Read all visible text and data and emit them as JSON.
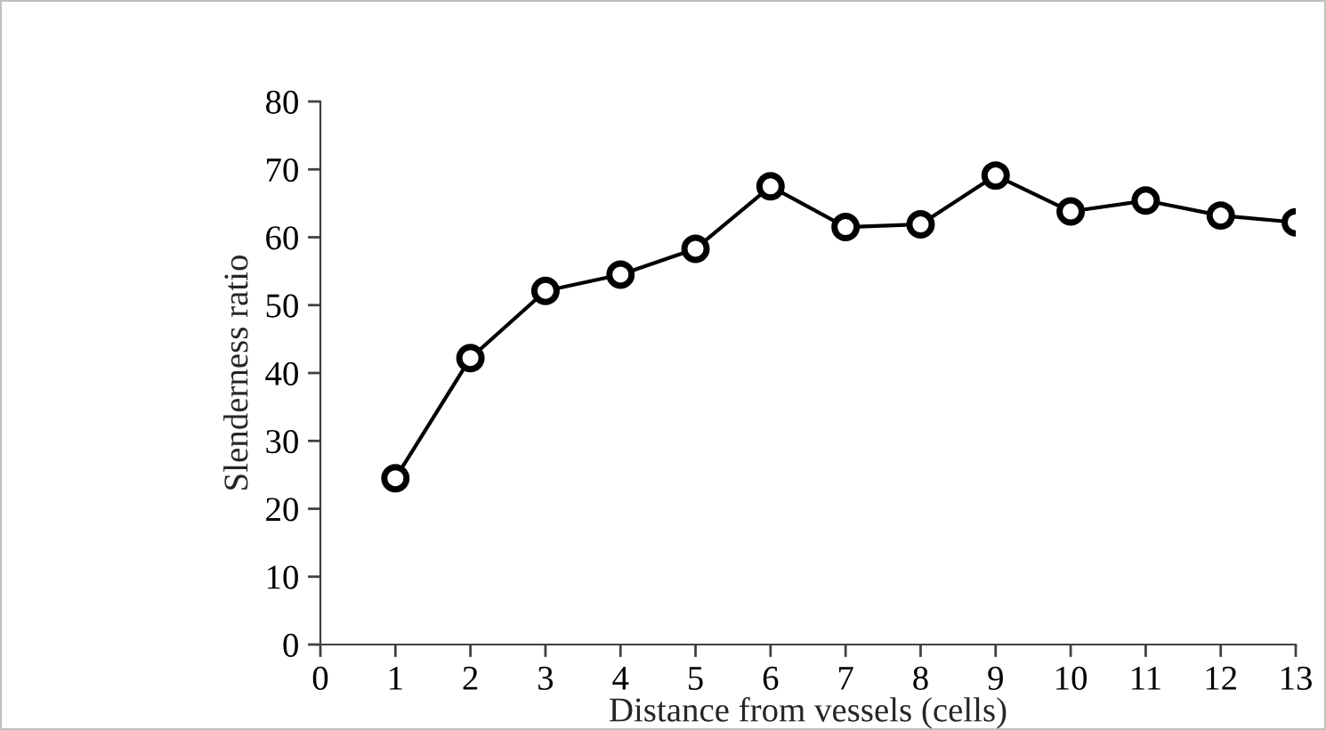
{
  "chart_data": {
    "type": "line",
    "xlabel": "Distance from vessels (cells)",
    "ylabel": "Slenderness ratio",
    "x": [
      1,
      2,
      3,
      4,
      5,
      6,
      7,
      8,
      9,
      10,
      11,
      12,
      13
    ],
    "series": [
      {
        "color": "#000000",
        "values": [
          24.5,
          42.2,
          52.1,
          54.5,
          58.3,
          67.5,
          61.5,
          61.9,
          69.1,
          63.8,
          65.4,
          63.2,
          62.2
        ]
      }
    ],
    "xlim": [
      0,
      13
    ],
    "xticks": [
      0,
      1,
      2,
      3,
      4,
      5,
      6,
      7,
      8,
      9,
      10,
      11,
      12,
      13
    ],
    "ylim": [
      0,
      80
    ],
    "yticks": [
      0,
      10,
      20,
      30,
      40,
      50,
      60,
      70,
      80
    ],
    "marker": "circle",
    "line_style": "solid",
    "grid": false
  }
}
